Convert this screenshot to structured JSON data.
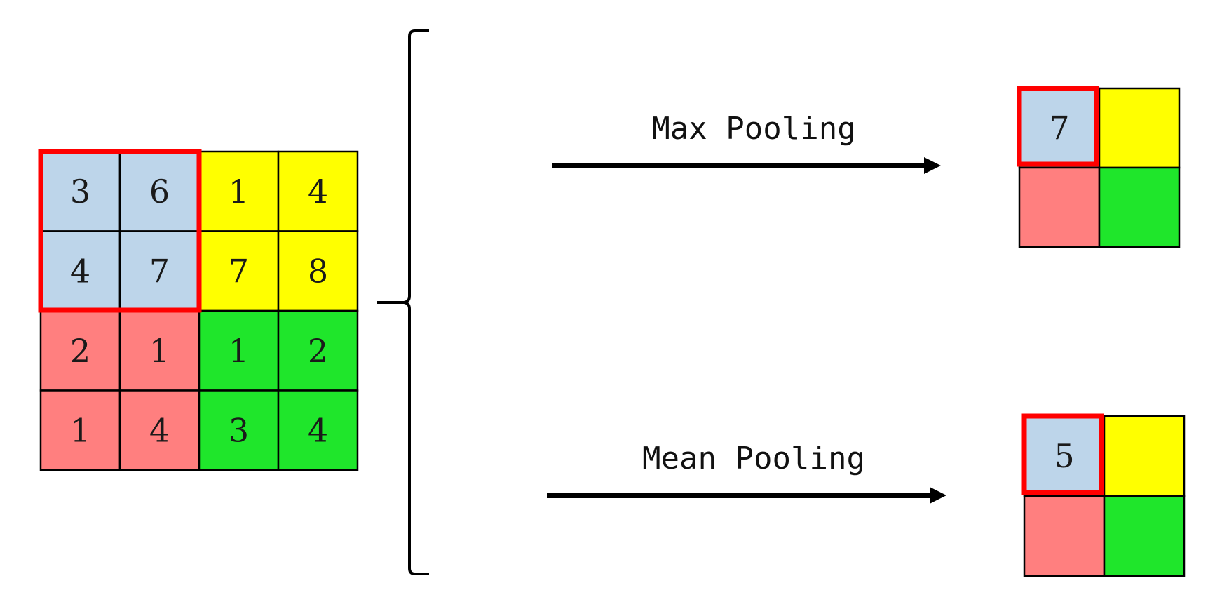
{
  "colors": {
    "blue": "#bdd5ea",
    "yellow": "#ffff00",
    "red": "#ff7f7f",
    "green": "#1fe62b",
    "highlight": "#ff0000",
    "line": "#000000"
  },
  "input_grid": {
    "values": [
      [
        "3",
        "6",
        "1",
        "4"
      ],
      [
        "4",
        "7",
        "7",
        "8"
      ],
      [
        "2",
        "1",
        "1",
        "2"
      ],
      [
        "1",
        "4",
        "3",
        "4"
      ]
    ],
    "quadrant_colors": [
      "blue",
      "yellow",
      "red",
      "green"
    ]
  },
  "max_pooling": {
    "label": "Max Pooling",
    "result_values": [
      "7",
      "",
      "",
      ""
    ]
  },
  "mean_pooling": {
    "label": "Mean Pooling",
    "result_values": [
      "5",
      "",
      "",
      ""
    ]
  }
}
